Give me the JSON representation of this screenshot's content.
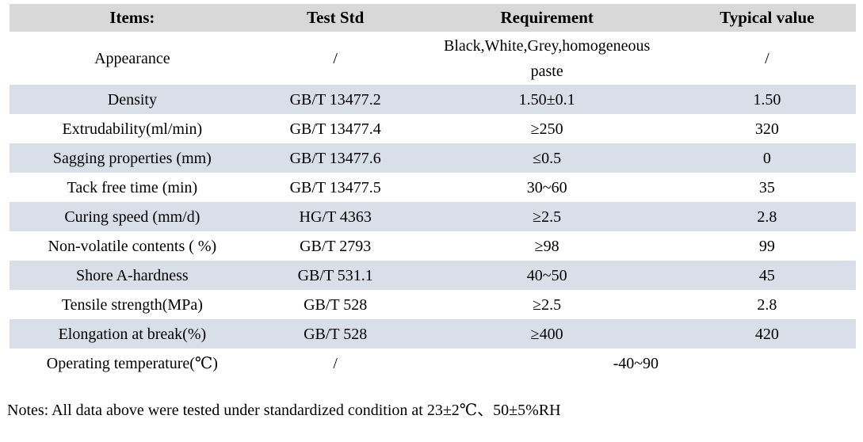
{
  "table": {
    "headers": [
      "Items:",
      "Test Std",
      "Requirement",
      "Typical value"
    ],
    "header_keys": [
      "items",
      "test-std",
      "requirement",
      "typical-value"
    ],
    "rows": [
      {
        "item": "Appearance",
        "std": "/",
        "req": "Black,White,Grey,homogeneous\npaste",
        "typ": "/"
      },
      {
        "item": "Density",
        "std": "GB/T 13477.2",
        "req": "1.50±0.1",
        "typ": "1.50"
      },
      {
        "item": "Extrudability(ml/min)",
        "std": "GB/T 13477.4",
        "req": "≥250",
        "typ": "320"
      },
      {
        "item": "Sagging properties (mm)",
        "std": "GB/T 13477.6",
        "req": "≤0.5",
        "typ": "0"
      },
      {
        "item": "Tack free time (min)",
        "std": "GB/T 13477.5",
        "req": "30~60",
        "typ": "35"
      },
      {
        "item": "Curing speed (mm/d)",
        "std": "HG/T 4363",
        "req": "≥2.5",
        "typ": "2.8"
      },
      {
        "item": "Non-volatile contents ( %)",
        "std": "GB/T 2793",
        "req": "≥98",
        "typ": "99"
      },
      {
        "item": "Shore A-hardness",
        "std": "GB/T 531.1",
        "req": "40~50",
        "typ": "45"
      },
      {
        "item": "Tensile strength(MPa)",
        "std": "GB/T 528",
        "req": "≥2.5",
        "typ": "2.8"
      },
      {
        "item": "Elongation at break(%)",
        "std": "GB/T 528",
        "req": "≥400",
        "typ": "420"
      },
      {
        "item": "Operating temperature(℃)",
        "std": "/",
        "req": "-40~90",
        "typ": null,
        "req_colspan": 2
      }
    ],
    "colors": {
      "header_bg": "#d8d8d8",
      "stripe_bg": "#d9dfe9",
      "text": "#000000"
    }
  },
  "notes": "Notes: All data above were tested under standardized condition at 23±2℃、50±5%RH"
}
